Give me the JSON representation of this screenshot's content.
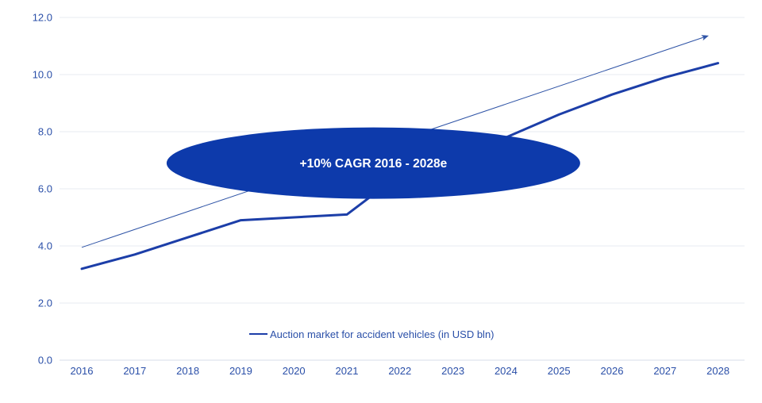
{
  "chart_data": {
    "type": "line",
    "categories": [
      "2016",
      "2017",
      "2018",
      "2019",
      "2020",
      "2021",
      "2022",
      "2023",
      "2024",
      "2025",
      "2026",
      "2027",
      "2028"
    ],
    "series": [
      {
        "name": "Auction market for accident vehicles (in USD bln)",
        "values": [
          3.2,
          3.7,
          4.3,
          4.9,
          5.0,
          5.1,
          6.5,
          7.1,
          7.8,
          8.6,
          9.3,
          9.9,
          10.4
        ],
        "color": "#1c3ea8",
        "width": 3
      }
    ],
    "y_ticks": {
      "values": [
        0,
        2,
        4,
        6,
        8,
        10,
        12
      ],
      "labels": [
        "0.0",
        "2.0",
        "4.0",
        "6.0",
        "8.0",
        "10.0",
        "12.0"
      ]
    },
    "ylim": [
      0,
      12
    ],
    "grid": true,
    "legend_position": "bottom-center",
    "trendline": {
      "start_year": 2016,
      "start_value": 3.95,
      "end_year": 2027.8,
      "end_value": 11.35,
      "color": "#2f54a6",
      "arrow": true
    },
    "annotation": {
      "type": "ellipse",
      "label": "+10% CAGR 2016 - 2028e",
      "center_year": 2021.5,
      "center_value": 6.9,
      "rx_years": 3.9,
      "ry_values": 1.25,
      "fill": "#0d3aab",
      "text_color": "#ffffff"
    },
    "colors": {
      "axis_label": "#2a4fa8",
      "gridline": "#e7ebf1",
      "zero_line": "#d7dde8",
      "background": "#ffffff"
    }
  },
  "legend": {
    "label": "Auction market for accident vehicles (in USD bln)"
  }
}
